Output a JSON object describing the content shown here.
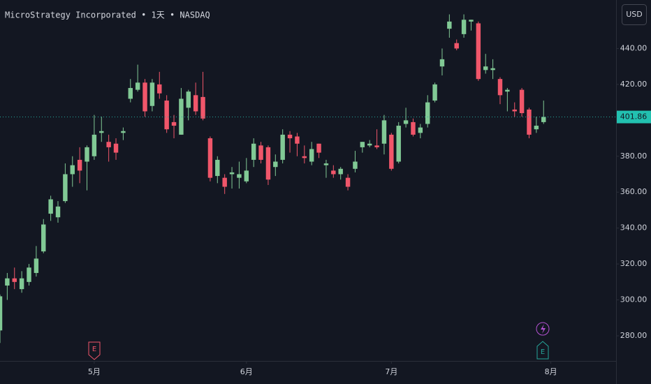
{
  "chart_data": {
    "type": "candlestick",
    "title": "MicroStrategy Incorporated • 1天 • NASDAQ",
    "currency": "USD",
    "open": [
      283,
      308,
      312,
      306,
      310,
      315,
      327,
      348,
      346,
      355,
      370,
      378,
      377,
      380,
      393,
      388,
      387,
      393,
      412,
      417,
      421,
      408,
      420,
      411,
      399,
      392,
      407,
      414,
      413,
      390,
      369,
      368,
      370,
      368,
      366,
      378,
      386,
      385,
      374,
      378,
      392,
      391,
      380,
      377,
      387,
      375,
      372,
      370,
      368,
      373,
      385,
      386,
      386,
      387,
      392,
      377,
      398,
      399,
      393,
      398,
      411,
      430,
      451,
      443,
      448,
      455,
      454,
      428,
      428,
      423,
      416,
      406,
      417,
      406,
      395,
      399
    ],
    "high": [
      303,
      315,
      318,
      316,
      320,
      330,
      345,
      358,
      355,
      376,
      380,
      385,
      386,
      403,
      402,
      392,
      390,
      396,
      423,
      431,
      423,
      423,
      427,
      414,
      403,
      418,
      417,
      421,
      427,
      391,
      380,
      370,
      374,
      377,
      379,
      390,
      388,
      386,
      381,
      395,
      394,
      393,
      386,
      388,
      387,
      378,
      375,
      374,
      370,
      383,
      388,
      389,
      395,
      403,
      393,
      399,
      407,
      401,
      398,
      414,
      421,
      440,
      459,
      445,
      459,
      456,
      455,
      437,
      434,
      424,
      418,
      410,
      418,
      407,
      402,
      411
    ],
    "low": [
      276,
      300,
      306,
      304,
      308,
      313,
      326,
      344,
      343,
      354,
      363,
      365,
      361,
      378,
      388,
      377,
      378,
      389,
      410,
      416,
      402,
      405,
      412,
      393,
      390,
      392,
      400,
      403,
      400,
      366,
      365,
      359,
      362,
      362,
      365,
      374,
      376,
      364,
      369,
      376,
      382,
      380,
      376,
      375,
      379,
      368,
      368,
      367,
      361,
      371,
      382,
      385,
      384,
      381,
      372,
      376,
      396,
      391,
      390,
      396,
      410,
      425,
      446,
      439,
      446,
      450,
      422,
      426,
      423,
      409,
      405,
      402,
      402,
      390,
      393,
      398
    ],
    "close": [
      302,
      312,
      310,
      312,
      318,
      323,
      342,
      356,
      352,
      370,
      375,
      372,
      385,
      392,
      394,
      385,
      382,
      394,
      418,
      421,
      405,
      421,
      415,
      395,
      397,
      412,
      416,
      405,
      401,
      368,
      378,
      363,
      371,
      370,
      372,
      387,
      378,
      367,
      377,
      392,
      390,
      387,
      379,
      384,
      382,
      376,
      370,
      373,
      363,
      377,
      388,
      387,
      385,
      400,
      373,
      397,
      400,
      392,
      396,
      410,
      420,
      434,
      455,
      440,
      456,
      456,
      423,
      430,
      429,
      414,
      417,
      405,
      404,
      392,
      397,
      401.86
    ],
    "up_color": "#81c995",
    "down_color": "#f0566a",
    "ylim": [
      266,
      467
    ],
    "yticks": [
      {
        "value": 280,
        "label": "280.00"
      },
      {
        "value": 300,
        "label": "300.00"
      },
      {
        "value": 320,
        "label": "320.00"
      },
      {
        "value": 340,
        "label": "340.00"
      },
      {
        "value": 360,
        "label": "360.00"
      },
      {
        "value": 380,
        "label": "380.00"
      },
      {
        "value": 400,
        "label": "400.00"
      },
      {
        "value": 420,
        "label": "420.00"
      },
      {
        "value": 440,
        "label": "440.00"
      }
    ],
    "xlim": [
      0,
      85
    ],
    "xticks": [
      {
        "value": 13,
        "label": "5月"
      },
      {
        "value": 34,
        "label": "6月"
      },
      {
        "value": 54,
        "label": "7月"
      },
      {
        "value": 76,
        "label": "8月"
      }
    ],
    "grid": true,
    "annotations": [
      "E",
      "E"
    ]
  }
}
